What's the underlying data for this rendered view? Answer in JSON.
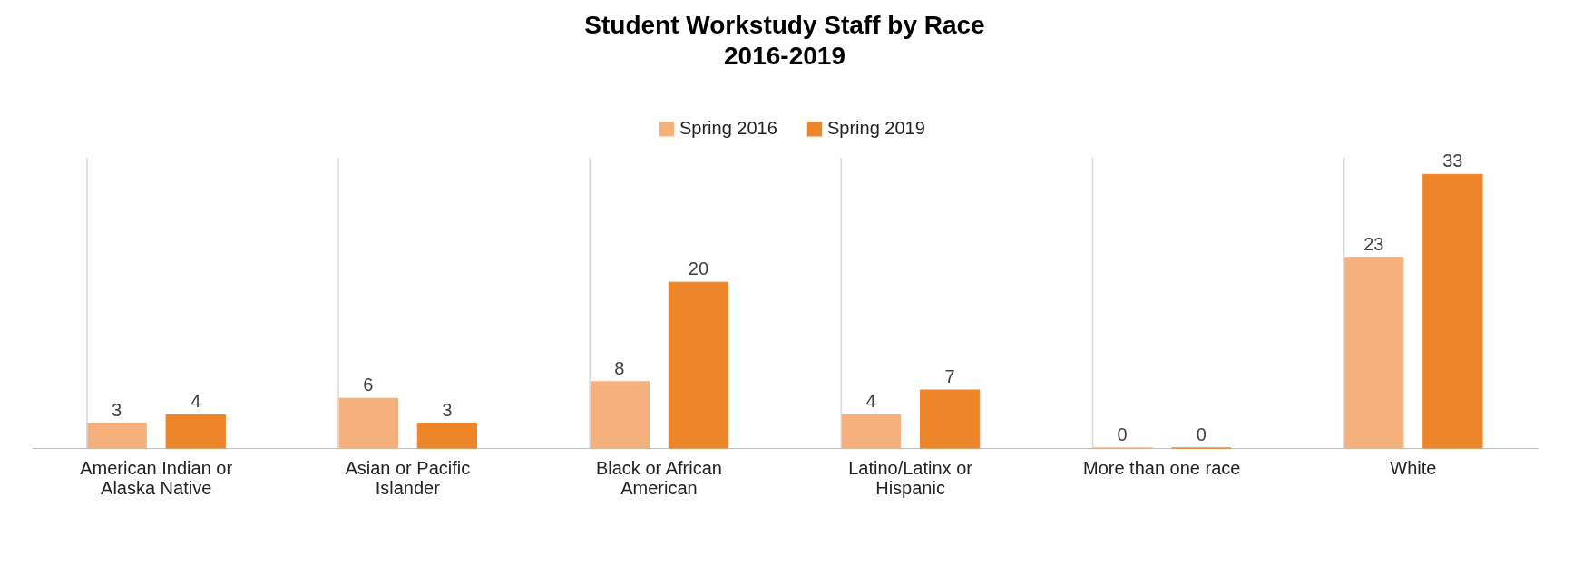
{
  "chart_data": {
    "type": "bar",
    "title": "Student Workstudy Staff by Race",
    "subtitle": "2016-2019",
    "categories": [
      "American Indian or Alaska Native",
      "Asian or Pacific Islander",
      "Black or African American",
      "Latino/Latinx or Hispanic",
      "More than one race",
      "White"
    ],
    "series": [
      {
        "name": "Spring 2016",
        "color": "#f5b07c",
        "values": [
          3,
          6,
          8,
          4,
          0,
          23
        ]
      },
      {
        "name": "Spring 2019",
        "color": "#ee8529",
        "values": [
          4,
          3,
          20,
          7,
          0,
          33
        ]
      }
    ],
    "data_labels": true,
    "grid": "x",
    "legend": "top"
  }
}
